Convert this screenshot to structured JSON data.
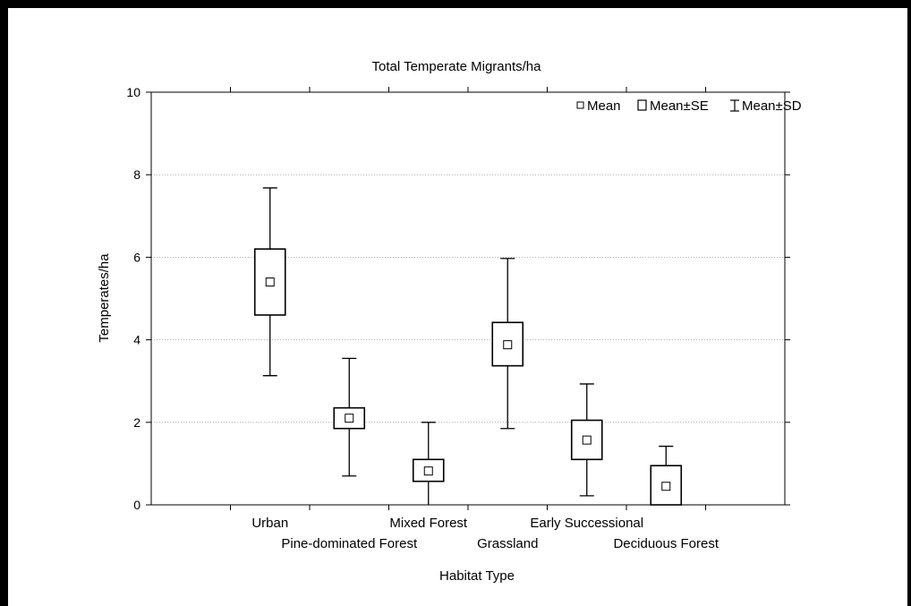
{
  "chart_data": {
    "type": "box",
    "title": "Total Temperate Migrants/ha",
    "xlabel": "Habitat Type",
    "ylabel": "Temperates/ha",
    "ylim": [
      0,
      10
    ],
    "yticks": [
      0,
      2,
      4,
      6,
      8,
      10
    ],
    "grid": true,
    "legend_position": "top-right",
    "legend": [
      "Mean",
      "Mean±SE",
      "Mean±SD"
    ],
    "categories": [
      "Urban",
      "Pine-dominated Forest",
      "Mixed Forest",
      "Grassland",
      "Early Successional",
      "Deciduous Forest"
    ],
    "series": [
      {
        "category": "Urban",
        "mean": 5.4,
        "se_low": 4.6,
        "se_high": 6.2,
        "sd_low": 3.13,
        "sd_high": 7.68
      },
      {
        "category": "Pine-dominated Forest",
        "mean": 2.1,
        "se_low": 1.85,
        "se_high": 2.35,
        "sd_low": 0.7,
        "sd_high": 3.55
      },
      {
        "category": "Mixed Forest",
        "mean": 0.82,
        "se_low": 0.57,
        "se_high": 1.1,
        "sd_low": 0.0,
        "sd_high": 2.0
      },
      {
        "category": "Grassland",
        "mean": 3.88,
        "se_low": 3.37,
        "se_high": 4.42,
        "sd_low": 1.85,
        "sd_high": 5.97
      },
      {
        "category": "Early Successional",
        "mean": 1.57,
        "se_low": 1.1,
        "se_high": 2.05,
        "sd_low": 0.22,
        "sd_high": 2.93
      },
      {
        "category": "Deciduous Forest",
        "mean": 0.45,
        "se_low": 0.0,
        "se_high": 0.95,
        "sd_low": 0.0,
        "sd_high": 1.42
      }
    ]
  }
}
